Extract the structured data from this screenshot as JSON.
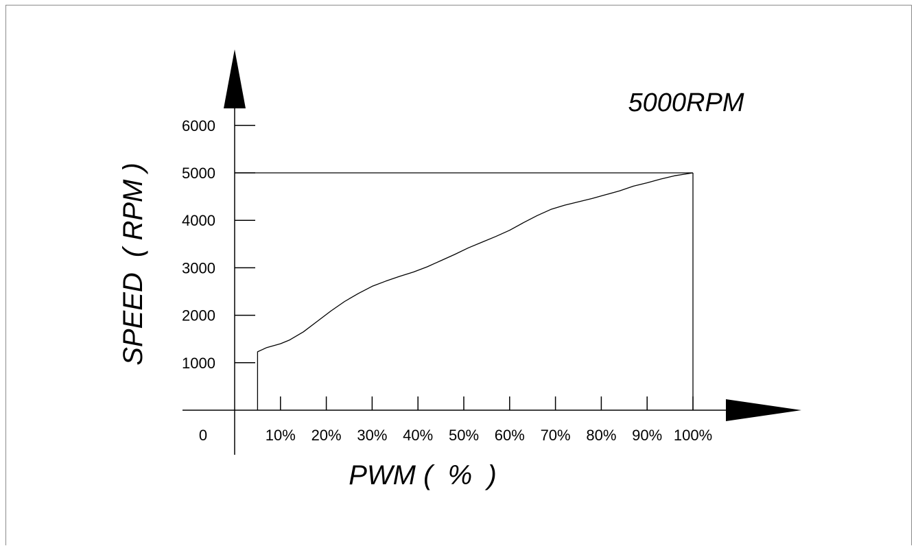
{
  "chart_data": {
    "type": "line",
    "annotation": "5000RPM",
    "xlabel": "PWM (  %  )",
    "ylabel": "SPEED  ( RPM )",
    "origin_label": "0",
    "x_tick_labels": [
      "10%",
      "20%",
      "30%",
      "40%",
      "50%",
      "60%",
      "70%",
      "80%",
      "90%",
      "100%"
    ],
    "y_tick_labels": [
      "1000",
      "2000",
      "3000",
      "4000",
      "5000",
      "6000"
    ],
    "xlim": [
      0,
      100
    ],
    "ylim": [
      0,
      6000
    ],
    "grid": false,
    "reference_level": 5000,
    "series": [
      {
        "x": [
          5,
          5,
          7,
          10,
          12,
          15,
          18,
          21,
          24,
          27,
          30,
          33,
          36,
          39,
          42,
          45,
          48,
          51,
          54,
          57,
          60,
          63,
          66,
          69,
          72,
          75,
          78,
          81,
          84,
          87,
          90,
          93,
          96,
          100
        ],
        "y": [
          0,
          1230,
          1320,
          1400,
          1480,
          1650,
          1870,
          2090,
          2290,
          2460,
          2610,
          2720,
          2820,
          2910,
          3020,
          3150,
          3280,
          3420,
          3540,
          3660,
          3790,
          3950,
          4100,
          4230,
          4320,
          4390,
          4460,
          4540,
          4620,
          4720,
          4790,
          4870,
          4940,
          5000
        ]
      }
    ]
  }
}
